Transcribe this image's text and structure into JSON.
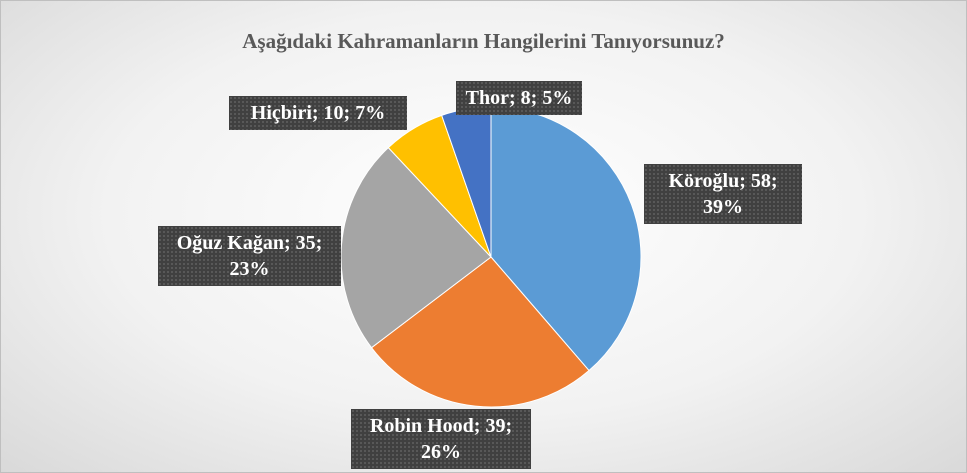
{
  "chart_data": {
    "type": "pie",
    "title": "Aşağıdaki Kahramanların Hangilerini Tanıyorsunuz?",
    "categories": [
      "Köroğlu",
      "Robin Hood",
      "Oğuz Kağan",
      "Hiçbiri",
      "Thor"
    ],
    "values": [
      58,
      39,
      35,
      10,
      8
    ],
    "value_labels": [
      "Köroğlu; 58; 39%",
      "Robin Hood; 39; 26%",
      "Oğuz Kağan; 35; 23%",
      "Hiçbiri; 10; 7%",
      "Thor; 8; 5%"
    ],
    "colors": [
      "#5b9bd5",
      "#ed7d31",
      "#a5a5a5",
      "#ffc000",
      "#4472c4"
    ]
  }
}
